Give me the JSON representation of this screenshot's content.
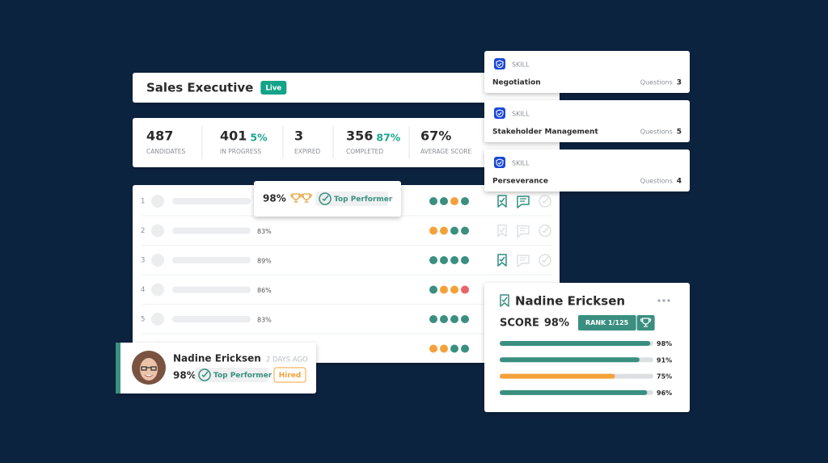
{
  "header": {
    "title": "Sales Executive",
    "status": "Live"
  },
  "stats": [
    {
      "value": 487,
      "label": "CANDIDATES"
    },
    {
      "value": 401,
      "change": "5%",
      "label": "IN PROGRESS"
    },
    {
      "value": 3,
      "label": "EXPIRED"
    },
    {
      "value": 356,
      "change": "87%",
      "label": "COMPLETED"
    },
    {
      "value": "67%",
      "label": "AVERAGE SCORE"
    }
  ],
  "table": {
    "rows": [
      {
        "rank": 1,
        "dots": [
          "#3a8f80",
          "#3a8f80",
          "#f5a13a",
          "#3a8f80"
        ],
        "active": [
          true,
          true,
          false
        ]
      },
      {
        "rank": 2,
        "score": "83%",
        "dots": [
          "#f5a13a",
          "#f5a13a",
          "#3a8f80",
          "#3a8f80"
        ],
        "active": [
          false,
          false,
          false
        ]
      },
      {
        "rank": 3,
        "score": "89%",
        "dots": [
          "#3a8f80",
          "#3a8f80",
          "#3a8f80",
          "#3a8f80"
        ],
        "active": [
          true,
          false,
          false
        ]
      },
      {
        "rank": 4,
        "score": "86%",
        "dots": [
          "#3a8f80",
          "#f5a13a",
          "#f5a13a",
          "#e8636a"
        ]
      },
      {
        "rank": 5,
        "score": "83%",
        "dots": [
          "#3a8f80",
          "#3a8f80",
          "#3a8f80",
          "#3a8f80"
        ]
      },
      {
        "dots": [
          "#f5a13a",
          "#f5a13a",
          "#3a8f80",
          "#3a8f80"
        ]
      }
    ]
  },
  "highlight": {
    "score": "98%",
    "badge": "Top Performer"
  },
  "skills": [
    {
      "tag": "SKILL",
      "name": "Negotiation",
      "questions_label": "Questions",
      "questions": 3
    },
    {
      "tag": "SKILL",
      "name": "Stakeholder Management",
      "questions_label": "Questions",
      "questions": 5
    },
    {
      "tag": "SKILL",
      "name": "Perseverance",
      "questions_label": "Questions",
      "questions": 4
    }
  ],
  "candidate": {
    "name": "Nadine Ericksen",
    "time": "2 DAYS AGO",
    "score": "98%",
    "badge": "Top Performer",
    "status": "Hired"
  },
  "profile": {
    "name": "Nadine Ericksen",
    "score_label": "SCORE",
    "score": "98%",
    "rank": "RANK 1/125",
    "bars": {
      "values": [
        98,
        91,
        75,
        96
      ],
      "value_labels": [
        "98%",
        "91%",
        "75%",
        "96%"
      ],
      "colors": [
        "#3a8f80",
        "#3a8f80",
        "#f5a13a",
        "#3a8f80"
      ],
      "xlim": [
        0,
        100
      ]
    }
  }
}
